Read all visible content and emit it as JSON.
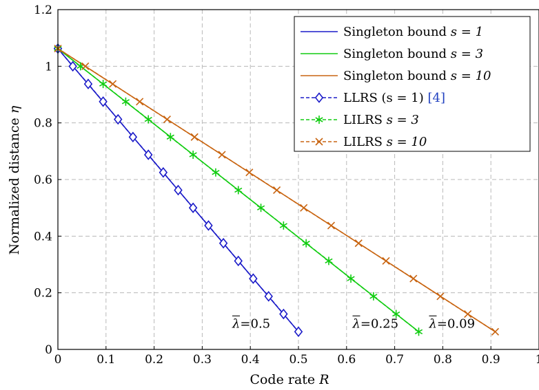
{
  "chart_data": {
    "type": "line",
    "xlabel": "Code rate",
    "xlabel_var": "R",
    "ylabel": "Normalized distance",
    "ylabel_var": "η",
    "xlim": [
      0,
      1
    ],
    "ylim": [
      0,
      1.2
    ],
    "xticks": [
      "0",
      "0.1",
      "0.2",
      "0.3",
      "0.4",
      "0.5",
      "0.6",
      "0.7",
      "0.8",
      "0.9",
      "1"
    ],
    "yticks": [
      "0",
      "0.2",
      "0.4",
      "0.6",
      "0.8",
      "1",
      "1.2"
    ],
    "grid": true,
    "legend_position": "top-right",
    "series": [
      {
        "name": "Singleton bound",
        "var": "s = 1",
        "ref": "",
        "color": "#1a1ac8",
        "style": "solid",
        "marker": "none",
        "x": [
          0,
          0.5
        ],
        "y": [
          1.0625,
          0.0625
        ]
      },
      {
        "name": "Singleton bound",
        "var": "s = 3",
        "ref": "",
        "color": "#11cc11",
        "style": "solid",
        "marker": "none",
        "x": [
          0,
          0.75
        ],
        "y": [
          1.0625,
          0.0625
        ]
      },
      {
        "name": "Singleton bound",
        "var": "s = 10",
        "ref": "",
        "color": "#c86410",
        "style": "solid",
        "marker": "none",
        "x": [
          0,
          0.909
        ],
        "y": [
          1.0625,
          0.0625
        ]
      },
      {
        "name": "LLRS (s = 1)",
        "var": "",
        "ref": "[4]",
        "color": "#1a1ac8",
        "style": "dashed",
        "marker": "diamond",
        "x": [
          0,
          0.031,
          0.063,
          0.094,
          0.125,
          0.156,
          0.188,
          0.219,
          0.25,
          0.281,
          0.313,
          0.344,
          0.375,
          0.406,
          0.438,
          0.469,
          0.5
        ],
        "y": [
          1.0625,
          1.0,
          0.9375,
          0.875,
          0.8125,
          0.75,
          0.6875,
          0.625,
          0.5625,
          0.5,
          0.4375,
          0.375,
          0.3125,
          0.25,
          0.1875,
          0.125,
          0.0625
        ]
      },
      {
        "name": "LILRS",
        "var": "s = 3",
        "ref": "",
        "color": "#11cc11",
        "style": "dashed",
        "marker": "asterisk",
        "x": [
          0,
          0.047,
          0.094,
          0.141,
          0.188,
          0.234,
          0.281,
          0.328,
          0.375,
          0.422,
          0.469,
          0.516,
          0.563,
          0.609,
          0.656,
          0.703,
          0.75
        ],
        "y": [
          1.0625,
          1.0,
          0.9375,
          0.875,
          0.8125,
          0.75,
          0.6875,
          0.625,
          0.5625,
          0.5,
          0.4375,
          0.375,
          0.3125,
          0.25,
          0.1875,
          0.125,
          0.0625
        ]
      },
      {
        "name": "LILRS",
        "var": "s = 10",
        "ref": "",
        "color": "#c86410",
        "style": "dashed",
        "marker": "cross",
        "x": [
          0,
          0.057,
          0.114,
          0.17,
          0.227,
          0.284,
          0.341,
          0.398,
          0.455,
          0.511,
          0.568,
          0.625,
          0.682,
          0.739,
          0.795,
          0.852,
          0.909
        ],
        "y": [
          1.0625,
          1.0,
          0.9375,
          0.875,
          0.8125,
          0.75,
          0.6875,
          0.625,
          0.5625,
          0.5,
          0.4375,
          0.375,
          0.3125,
          0.25,
          0.1875,
          0.125,
          0.0625
        ]
      }
    ],
    "annotations": [
      {
        "symbol": "λ",
        "text": "=0.5",
        "x": 0.5,
        "y": 0.0625
      },
      {
        "symbol": "λ",
        "text": "=0.25",
        "x": 0.75,
        "y": 0.0625
      },
      {
        "symbol": "λ",
        "text": "=0.09",
        "x": 0.909,
        "y": 0.0625
      }
    ]
  }
}
